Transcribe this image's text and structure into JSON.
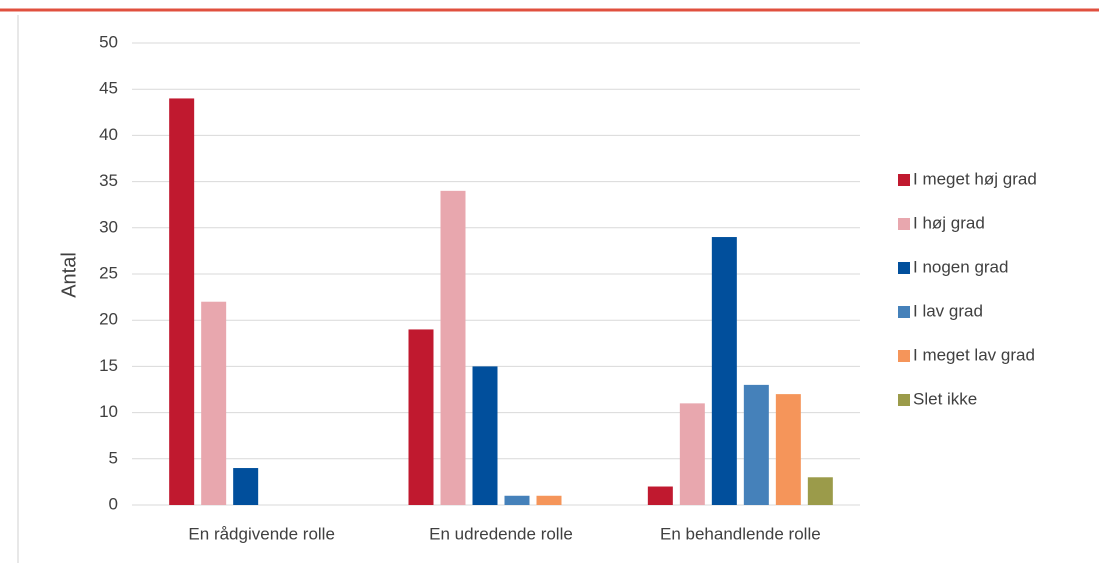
{
  "chart_data": {
    "type": "bar",
    "y_label": "Antal",
    "categories": [
      "En rådgivende rolle",
      "En udredende rolle",
      "En behandlende rolle"
    ],
    "series": [
      {
        "name": "I meget høj grad",
        "color": "#c0192f",
        "values": [
          44,
          19,
          2
        ]
      },
      {
        "name": "I høj grad",
        "color": "#e8a7ae",
        "values": [
          22,
          34,
          11
        ]
      },
      {
        "name": "I nogen grad",
        "color": "#014f9c",
        "values": [
          4,
          15,
          29
        ]
      },
      {
        "name": "I lav grad",
        "color": "#4581ba",
        "values": [
          0,
          1,
          13
        ]
      },
      {
        "name": "I meget lav grad",
        "color": "#f5955a",
        "values": [
          0,
          1,
          12
        ]
      },
      {
        "name": "Slet ikke",
        "color": "#9b9b4a",
        "values": [
          0,
          0,
          3
        ]
      }
    ],
    "ylim": [
      0,
      50
    ],
    "yticks": [
      0,
      5,
      10,
      15,
      20,
      25,
      30,
      35,
      40,
      45,
      50
    ],
    "grid": true,
    "legend": "right"
  }
}
